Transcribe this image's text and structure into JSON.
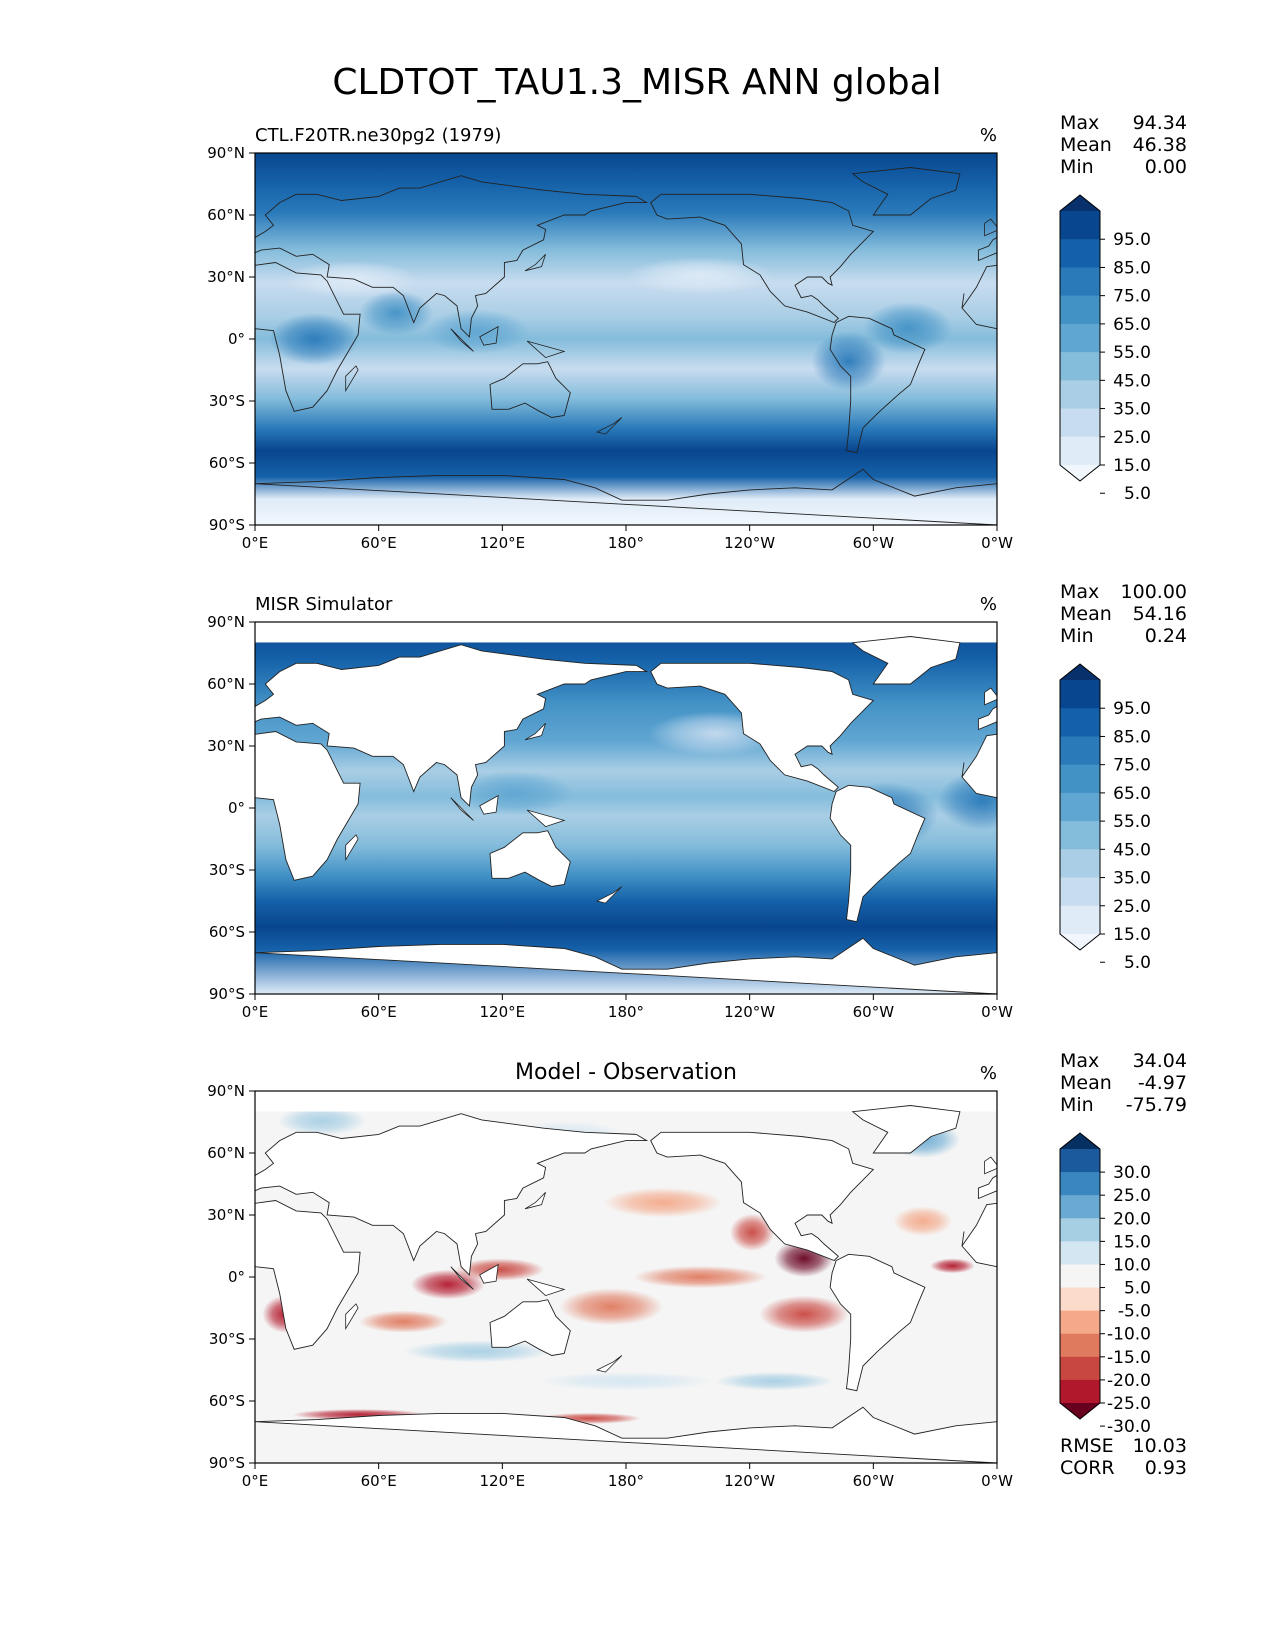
{
  "chart_data": {
    "type": "heatmap",
    "title": "CLDTOT_TAU1.3_MISR ANN global",
    "x_ticks": [
      "0°E",
      "60°E",
      "120°E",
      "180°",
      "120°W",
      "60°W",
      "0°W"
    ],
    "y_ticks": [
      "90°N",
      "60°N",
      "30°N",
      "0°",
      "30°S",
      "60°S",
      "90°S"
    ],
    "lon_range": [
      0,
      360
    ],
    "lat_range": [
      -90,
      90
    ],
    "panels": [
      {
        "id": "model",
        "title_left": "CTL.F20TR.ne30pg2 (1979)",
        "title_center": "",
        "units": "%",
        "stats": [
          {
            "label": "Max",
            "value": "94.34"
          },
          {
            "label": "Mean",
            "value": "46.38"
          },
          {
            "label": "Min",
            "value": "0.00"
          }
        ],
        "colorbar": {
          "type": "sequential",
          "labels": [
            "95.0",
            "85.0",
            "75.0",
            "65.0",
            "55.0",
            "45.0",
            "35.0",
            "25.0",
            "15.0",
            "5.0"
          ],
          "colors": [
            "#08306b",
            "#08468f",
            "#1561a9",
            "#2a7aba",
            "#4392c6",
            "#60a6d2",
            "#84bcdb",
            "#a9cee5",
            "#c8dcef",
            "#dfebf7",
            "#f1f7fd"
          ]
        },
        "extra_stats": []
      },
      {
        "id": "obs",
        "title_left": "MISR Simulator",
        "title_center": "",
        "units": "%",
        "stats": [
          {
            "label": "Max",
            "value": "100.00"
          },
          {
            "label": "Mean",
            "value": "54.16"
          },
          {
            "label": "Min",
            "value": "0.24"
          }
        ],
        "colorbar": {
          "type": "sequential",
          "labels": [
            "95.0",
            "85.0",
            "75.0",
            "65.0",
            "55.0",
            "45.0",
            "35.0",
            "25.0",
            "15.0",
            "5.0"
          ],
          "colors": [
            "#08306b",
            "#08468f",
            "#1561a9",
            "#2a7aba",
            "#4392c6",
            "#60a6d2",
            "#84bcdb",
            "#a9cee5",
            "#c8dcef",
            "#dfebf7",
            "#f1f7fd"
          ]
        },
        "extra_stats": []
      },
      {
        "id": "diff",
        "title_left": "",
        "title_center": "Model - Observation",
        "units": "%",
        "stats": [
          {
            "label": "Max",
            "value": "34.04"
          },
          {
            "label": "Mean",
            "value": "-4.97"
          },
          {
            "label": "Min",
            "value": "-75.79"
          }
        ],
        "colorbar": {
          "type": "diverging",
          "labels": [
            "30.0",
            "25.0",
            "20.0",
            "15.0",
            "10.0",
            "5.0",
            "-5.0",
            "-10.0",
            "-15.0",
            "-20.0",
            "-25.0",
            "-30.0"
          ],
          "colors": [
            "#053061",
            "#1b5a9c",
            "#3a86c0",
            "#6aaad2",
            "#a7cfe4",
            "#d4e6f1",
            "#f5f5f5",
            "#fbdccb",
            "#f4a98a",
            "#e07a5f",
            "#c94741",
            "#b2182b",
            "#67001f"
          ]
        },
        "extra_stats": [
          {
            "label": "RMSE",
            "value": "10.03"
          },
          {
            "label": "CORR",
            "value": "0.93"
          }
        ]
      }
    ]
  }
}
